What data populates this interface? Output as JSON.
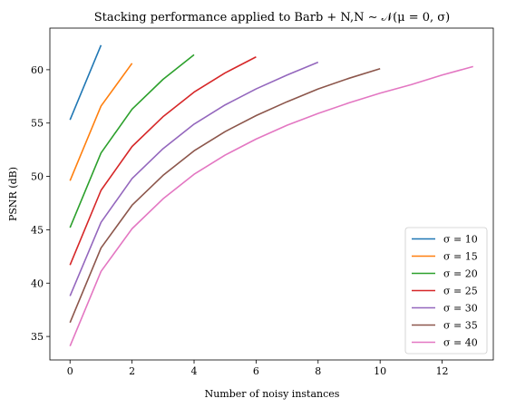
{
  "chart_data": {
    "type": "line",
    "title": "Stacking performance applied to Barb + N,N ∼ 𝒩(μ = 0, σ)",
    "xlabel": "Number of noisy instances",
    "ylabel": "PSNR (dB)",
    "xlim": [
      -0.65,
      13.65
    ],
    "ylim": [
      32.8,
      63.9
    ],
    "xticks": [
      0,
      2,
      4,
      6,
      8,
      10,
      12
    ],
    "yticks": [
      35,
      40,
      45,
      50,
      55,
      60
    ],
    "legend_position": "lower-right",
    "grid": false,
    "series": [
      {
        "name": "σ = 10",
        "color": "#1f77b4",
        "x": [
          0,
          1
        ],
        "y": [
          55.3,
          62.3
        ]
      },
      {
        "name": "σ = 15",
        "color": "#ff7f0e",
        "x": [
          0,
          1,
          2
        ],
        "y": [
          49.6,
          56.6,
          60.6
        ]
      },
      {
        "name": "σ = 20",
        "color": "#2ca02c",
        "x": [
          0,
          1,
          2,
          3,
          4
        ],
        "y": [
          45.2,
          52.2,
          56.3,
          59.1,
          61.4
        ]
      },
      {
        "name": "σ = 25",
        "color": "#d62728",
        "x": [
          0,
          1,
          2,
          3,
          4,
          5,
          6
        ],
        "y": [
          41.7,
          48.7,
          52.8,
          55.6,
          57.9,
          59.7,
          61.2
        ]
      },
      {
        "name": "σ = 30",
        "color": "#9467bd",
        "x": [
          0,
          1,
          2,
          3,
          4,
          5,
          6,
          7,
          8
        ],
        "y": [
          38.8,
          45.7,
          49.8,
          52.6,
          54.9,
          56.7,
          58.2,
          59.5,
          60.7
        ]
      },
      {
        "name": "σ = 35",
        "color": "#8c564b",
        "x": [
          0,
          1,
          2,
          3,
          4,
          5,
          6,
          7,
          8,
          9,
          10
        ],
        "y": [
          36.3,
          43.3,
          47.3,
          50.1,
          52.4,
          54.2,
          55.7,
          57.0,
          58.2,
          59.2,
          60.1
        ]
      },
      {
        "name": "σ = 40",
        "color": "#e377c2",
        "x": [
          0,
          1,
          2,
          3,
          4,
          5,
          6,
          7,
          8,
          9,
          10,
          11,
          12,
          13
        ],
        "y": [
          34.1,
          41.1,
          45.1,
          47.9,
          50.2,
          52.0,
          53.5,
          54.8,
          55.9,
          56.9,
          57.8,
          58.6,
          59.5,
          60.3
        ]
      }
    ]
  }
}
